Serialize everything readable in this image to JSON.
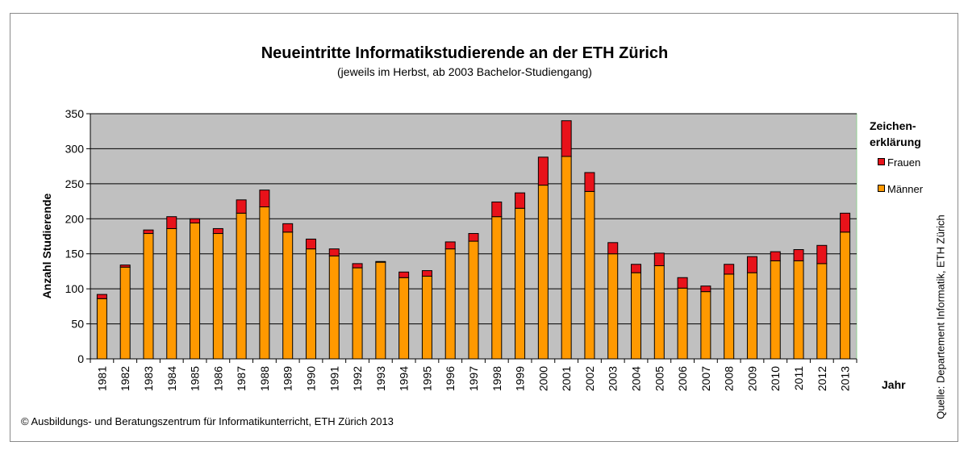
{
  "chart_data": {
    "type": "bar",
    "stacked": true,
    "title": "Neueintritte Informatikstudierende an der ETH Zürich",
    "subtitle": "(jeweils im Herbst, ab 2003 Bachelor-Studiengang)",
    "xlabel": "Jahr",
    "ylabel": "Anzahl Studierende",
    "ylim": [
      0,
      350
    ],
    "yticks": [
      0,
      50,
      100,
      150,
      200,
      250,
      300,
      350
    ],
    "grid": true,
    "legend_title": "Zeichen-\nerklärung",
    "legend_position": "right",
    "categories": [
      "1981",
      "1982",
      "1983",
      "1984",
      "1985",
      "1986",
      "1987",
      "1988",
      "1989",
      "1990",
      "1991",
      "1992",
      "1993",
      "1994",
      "1995",
      "1996",
      "1997",
      "1998",
      "1999",
      "2000",
      "2001",
      "2002",
      "2003",
      "2004",
      "2005",
      "2006",
      "2007",
      "2008",
      "2009",
      "2010",
      "2011",
      "2012",
      "2013"
    ],
    "series": [
      {
        "name": "Männer",
        "color": "#ff9900",
        "values": [
          86,
          131,
          179,
          186,
          194,
          179,
          208,
          217,
          181,
          157,
          147,
          130,
          138,
          116,
          118,
          157,
          168,
          203,
          215,
          248,
          289,
          239,
          150,
          123,
          133,
          101,
          96,
          121,
          123,
          140,
          140,
          136,
          181
        ]
      },
      {
        "name": "Frauen",
        "color": "#e8121a",
        "values": [
          6,
          3,
          5,
          17,
          6,
          7,
          19,
          24,
          12,
          14,
          10,
          6,
          1,
          8,
          8,
          10,
          11,
          21,
          22,
          40,
          51,
          27,
          16,
          12,
          18,
          15,
          8,
          14,
          23,
          13,
          16,
          26,
          27
        ]
      }
    ],
    "legend_order": [
      "Frauen",
      "Männer"
    ]
  },
  "source": "Quelle: Departement Informatik, ETH Zürich",
  "copyright": "© Ausbildungs- und Beratungszentrum für Informatikunterricht, ETH Zürich 2013",
  "colors": {
    "plot_background": "#c0c0c0",
    "gridline": "#000000",
    "plot_border": "#90d090"
  }
}
